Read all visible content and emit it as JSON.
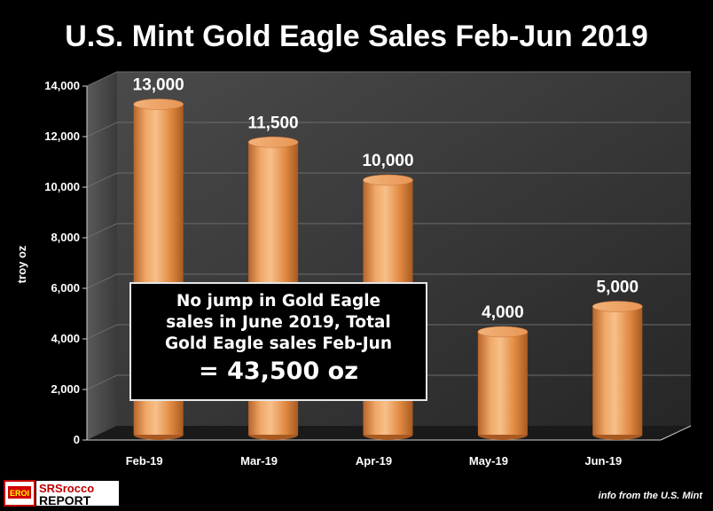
{
  "chart_data": {
    "type": "bar",
    "title": "U.S. Mint Gold Eagle Sales Feb-Jun 2019",
    "ylabel": "troy oz",
    "xlabel": "",
    "categories": [
      "Feb-19",
      "Mar-19",
      "Apr-19",
      "May-19",
      "Jun-19"
    ],
    "values": [
      13000,
      11500,
      10000,
      4000,
      5000
    ],
    "data_labels": [
      "13,000",
      "11,500",
      "10,000",
      "4,000",
      "5,000"
    ],
    "ylim": [
      0,
      14000
    ],
    "yticks": [
      0,
      2000,
      4000,
      6000,
      8000,
      10000,
      12000,
      14000
    ],
    "ytick_labels": [
      "0",
      "2,000",
      "4,000",
      "6,000",
      "8,000",
      "10,000",
      "12,000",
      "14,000"
    ],
    "grid": true,
    "bar_color": "#e8914a",
    "background_color": "#000000",
    "plot_wall_color": "#3a3a3a"
  },
  "callout": {
    "line1": "No jump in Gold Eagle",
    "line2": "sales in June 2019, Total",
    "line3": "Gold Eagle sales Feb-Jun",
    "line4": "= 43,500 oz"
  },
  "logo": {
    "badge": "EROI",
    "line1": "SRSrocco",
    "line2": "REPORT"
  },
  "credit": "info from the U.S. Mint"
}
